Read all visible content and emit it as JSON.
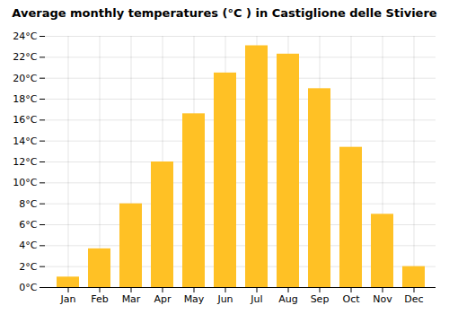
{
  "chart_data": {
    "type": "bar",
    "title": "Average monthly temperatures (°C ) in Castiglione delle Stiviere",
    "categories": [
      "Jan",
      "Feb",
      "Mar",
      "Apr",
      "May",
      "Jun",
      "Jul",
      "Aug",
      "Sep",
      "Oct",
      "Nov",
      "Dec"
    ],
    "values": [
      1.0,
      3.7,
      8.0,
      12.0,
      16.6,
      20.5,
      23.1,
      22.3,
      19.0,
      13.4,
      7.0,
      2.0
    ],
    "color": "#FFC125",
    "ylim": [
      0,
      24
    ],
    "yticks": [
      {
        "value": 0,
        "label": "0°C"
      },
      {
        "value": 2,
        "label": "2°C"
      },
      {
        "value": 4,
        "label": "4°C"
      },
      {
        "value": 6,
        "label": "6°C"
      },
      {
        "value": 8,
        "label": "8°C"
      },
      {
        "value": 10,
        "label": "10°C"
      },
      {
        "value": 12,
        "label": "12°C"
      },
      {
        "value": 14,
        "label": "14°C"
      },
      {
        "value": 16,
        "label": "16°C"
      },
      {
        "value": 18,
        "label": "18°C"
      },
      {
        "value": 20,
        "label": "20°C"
      },
      {
        "value": 22,
        "label": "22°C"
      },
      {
        "value": 24,
        "label": "24°C"
      }
    ],
    "grid": true
  }
}
